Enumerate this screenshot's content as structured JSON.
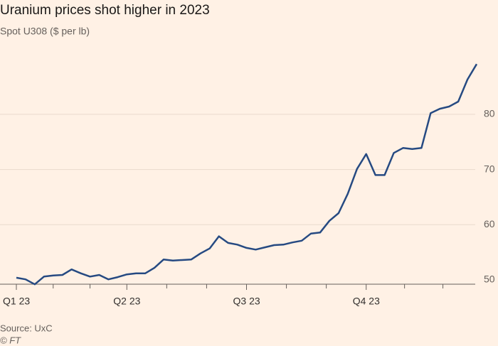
{
  "chart_data": {
    "type": "line",
    "title": "Uranium prices shot higher in 2023",
    "subtitle": "Spot U308 ($ per lb)",
    "source": "Source: UxC",
    "credit": "© FT",
    "categories": [
      "Q1 23",
      null,
      null,
      null,
      null,
      null,
      null,
      null,
      null,
      null,
      null,
      null,
      "Q2 23",
      null,
      null,
      null,
      null,
      null,
      null,
      null,
      null,
      null,
      null,
      null,
      null,
      "Q3 23",
      null,
      null,
      null,
      null,
      null,
      null,
      null,
      null,
      null,
      null,
      null,
      null,
      "Q4 23",
      null,
      null,
      null,
      null,
      null,
      null,
      null,
      null,
      null,
      null,
      null,
      null
    ],
    "series": [
      {
        "name": "Spot U308",
        "color": "#264a82",
        "values": [
          50.4,
          50.1,
          49.2,
          50.6,
          50.8,
          50.9,
          51.9,
          51.2,
          50.6,
          50.9,
          50.1,
          50.5,
          51.0,
          51.2,
          51.2,
          52.2,
          53.7,
          53.5,
          53.6,
          53.7,
          54.8,
          55.7,
          57.9,
          56.7,
          56.4,
          55.8,
          55.5,
          55.9,
          56.3,
          56.4,
          56.8,
          57.1,
          58.4,
          58.6,
          60.7,
          62.1,
          65.6,
          70.1,
          72.8,
          69.0,
          69.0,
          73.0,
          73.9,
          73.7,
          73.9,
          80.2,
          81.0,
          81.4,
          82.3,
          86.3,
          89.1
        ]
      }
    ],
    "ylim": [
      49.2,
      90
    ],
    "yticks": [
      50,
      60,
      70,
      80
    ],
    "grid": true
  }
}
